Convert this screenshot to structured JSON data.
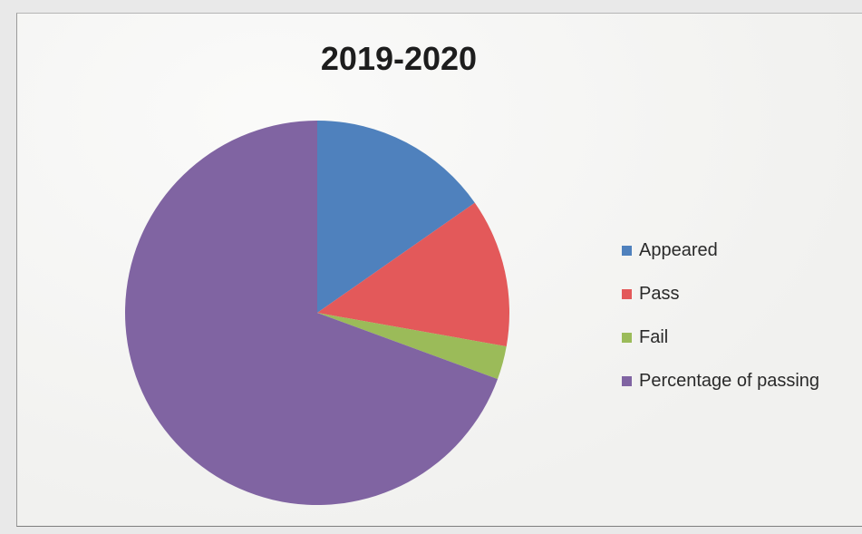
{
  "chart_data": {
    "type": "pie",
    "title": "2019-2020",
    "legend_position": "right",
    "slices": [
      {
        "label": "Appeared",
        "value": 15.3,
        "color": "#4f81bd"
      },
      {
        "label": "Pass",
        "value": 12.5,
        "color": "#e3595a"
      },
      {
        "label": "Fail",
        "value": 2.8,
        "color": "#9bbb59"
      },
      {
        "label": "Percentage of passing",
        "value": 69.4,
        "color": "#8064a2"
      }
    ]
  }
}
